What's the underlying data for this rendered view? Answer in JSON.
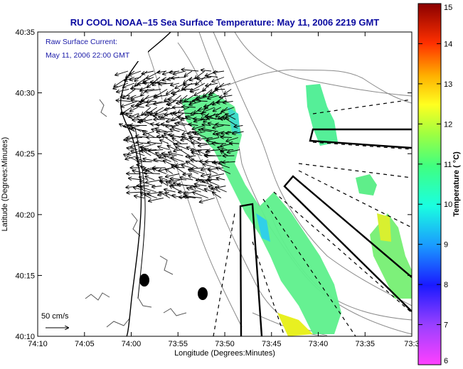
{
  "chart_data": {
    "type": "heatmap",
    "title": "RU COOL  NOAA–15  Sea Surface Temperature:  May 11, 2006 2219 GMT",
    "xlabel": "Longitude (Degrees:Minutes)",
    "ylabel": "Latitude (Degrees:Minutes)",
    "x_ticks": [
      "74:10",
      "74:05",
      "74:00",
      "73:55",
      "73:50",
      "73:45",
      "73:40",
      "73:35",
      "73:3"
    ],
    "x_tick_values": [
      -74.1667,
      -74.0833,
      -74.0,
      -73.9167,
      -73.8333,
      -73.75,
      -73.6667,
      -73.5833,
      -73.5
    ],
    "y_ticks": [
      "40:35",
      "40:30",
      "40:25",
      "40:20",
      "40:15",
      "40:10"
    ],
    "y_tick_values": [
      40.5833,
      40.5,
      40.4167,
      40.3333,
      40.25,
      40.1667
    ],
    "xlim": [
      -74.1667,
      -73.5
    ],
    "ylim": [
      40.1667,
      40.5833
    ],
    "colorbar": {
      "label": "Temperature ( °C)",
      "ticks": [
        "15",
        "14",
        "13",
        "12",
        "11",
        "10",
        "9",
        "8",
        "7",
        "6"
      ],
      "tick_values": [
        15,
        14,
        13,
        12,
        11,
        10,
        9,
        8,
        7,
        6
      ],
      "range": [
        6,
        15
      ]
    },
    "legend": {
      "line1": "Raw Surface Current:",
      "line2": "May 11, 2006 22:00 GMT",
      "scale_label": "50 cm/s"
    },
    "sst_band_temperature_c": 10.7
  }
}
